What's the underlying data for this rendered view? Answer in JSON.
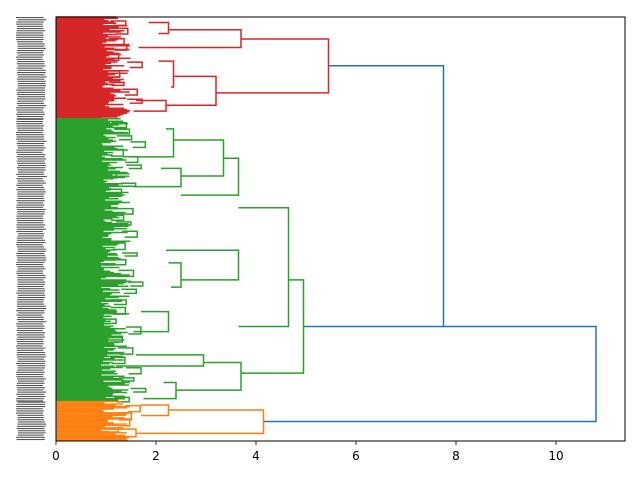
{
  "chart_data": {
    "type": "dendrogram",
    "orientation": "right",
    "title": "",
    "xlabel": "",
    "ylabel": "",
    "xlim": [
      0,
      11.38
    ],
    "xticks": [
      0,
      2,
      4,
      6,
      8,
      10
    ],
    "xtick_labels": [
      "0",
      "2",
      "4",
      "6",
      "8",
      "10"
    ],
    "grid": false,
    "legend": "none",
    "colors": {
      "above_threshold": "#1f77b4",
      "cluster_red": "#d62728",
      "cluster_green": "#2ca02c",
      "cluster_orange": "#ff7f0e"
    },
    "clusters": [
      {
        "name": "red",
        "color": "#d62728",
        "leaf_fraction": 0.24,
        "merge_height": 5.45
      },
      {
        "name": "green",
        "color": "#2ca02c",
        "leaf_fraction": 0.667,
        "merge_height": 4.95
      },
      {
        "name": "orange",
        "color": "#ff7f0e",
        "leaf_fraction": 0.093,
        "merge_height": 4.15
      }
    ],
    "links": [
      {
        "height": 10.8,
        "left_height": 7.75,
        "right_height": 4.15,
        "color": "#1f77b4",
        "left_pos": 0.73,
        "right_pos": 0.954
      },
      {
        "height": 7.75,
        "left_height": 5.45,
        "right_height": 4.95,
        "color": "#1f77b4",
        "left_pos": 0.115,
        "right_pos": 0.73
      },
      {
        "height": 5.45,
        "left_height": 3.7,
        "right_height": 3.2,
        "color": "#d62728",
        "left_pos": 0.052,
        "right_pos": 0.179
      },
      {
        "height": 3.7,
        "left_height": 2.25,
        "right_height": 1.65,
        "color": "#d62728",
        "left_pos": 0.03,
        "right_pos": 0.072
      },
      {
        "height": 2.25,
        "left_height": 1.85,
        "right_height": 2.05,
        "color": "#d62728",
        "left_pos": 0.013,
        "right_pos": 0.039
      },
      {
        "height": 3.2,
        "left_height": 2.35,
        "right_height": 2.2,
        "color": "#d62728",
        "left_pos": 0.14,
        "right_pos": 0.208
      },
      {
        "height": 2.35,
        "left_height": 2.05,
        "right_height": 2.3,
        "color": "#d62728",
        "left_pos": 0.104,
        "right_pos": 0.165
      },
      {
        "height": 2.2,
        "left_height": 1.6,
        "right_height": 1.55,
        "color": "#d62728",
        "left_pos": 0.197,
        "right_pos": 0.222
      },
      {
        "height": 4.95,
        "left_height": 4.65,
        "right_height": 3.7,
        "color": "#2ca02c",
        "left_pos": 0.62,
        "right_pos": 0.84
      },
      {
        "height": 4.65,
        "left_height": 3.65,
        "right_height": 3.65,
        "color": "#2ca02c",
        "left_pos": 0.45,
        "right_pos": 0.73
      },
      {
        "height": 3.65,
        "left_height": 3.35,
        "right_height": 2.5,
        "color": "#2ca02c",
        "left_pos": 0.333,
        "right_pos": 0.42
      },
      {
        "height": 3.35,
        "left_height": 2.35,
        "right_height": 2.5,
        "color": "#2ca02c",
        "left_pos": 0.29,
        "right_pos": 0.375
      },
      {
        "height": 2.35,
        "left_height": 2.2,
        "right_height": 1.5,
        "color": "#2ca02c",
        "left_pos": 0.264,
        "right_pos": 0.33
      },
      {
        "height": 2.5,
        "left_height": 2.1,
        "right_height": 1.55,
        "color": "#2ca02c",
        "left_pos": 0.357,
        "right_pos": 0.4
      },
      {
        "height": 3.65,
        "left_height": 2.2,
        "right_height": 2.5,
        "color": "#2ca02c",
        "left_pos": 0.55,
        "right_pos": 0.62
      },
      {
        "height": 2.5,
        "left_height": 2.25,
        "right_height": 2.3,
        "color": "#2ca02c",
        "left_pos": 0.58,
        "right_pos": 0.637
      },
      {
        "height": 3.7,
        "left_height": 2.95,
        "right_height": 2.4,
        "color": "#2ca02c",
        "left_pos": 0.815,
        "right_pos": 0.88
      },
      {
        "height": 2.95,
        "left_height": 1.6,
        "right_height": 1.2,
        "color": "#2ca02c",
        "left_pos": 0.797,
        "right_pos": 0.823
      },
      {
        "height": 2.4,
        "left_height": 2.15,
        "right_height": 1.75,
        "color": "#2ca02c",
        "left_pos": 0.862,
        "right_pos": 0.9
      },
      {
        "height": 2.25,
        "left_height": 1.7,
        "right_height": 1.55,
        "color": "#2ca02c",
        "left_pos": 0.695,
        "right_pos": 0.742
      },
      {
        "height": 4.15,
        "left_height": 2.25,
        "right_height": 1.6,
        "color": "#ff7f0e",
        "left_pos": 0.927,
        "right_pos": 0.982
      },
      {
        "height": 2.25,
        "left_height": 1.7,
        "right_height": 1.7,
        "color": "#ff7f0e",
        "left_pos": 0.915,
        "right_pos": 0.94
      },
      {
        "height": 1.6,
        "left_height": 1.05,
        "right_height": 0.9,
        "color": "#ff7f0e",
        "left_pos": 0.972,
        "right_pos": 0.99
      }
    ]
  }
}
